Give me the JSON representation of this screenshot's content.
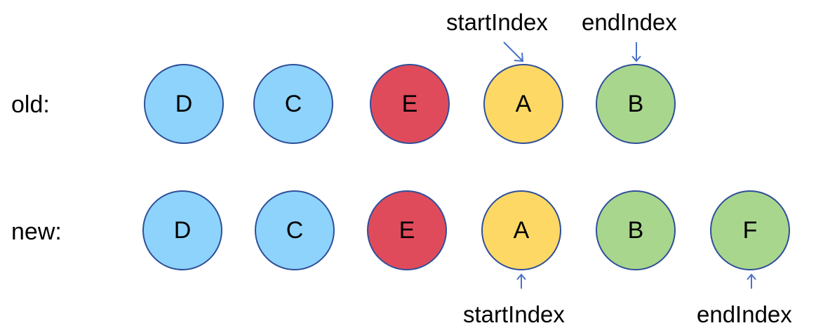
{
  "colors": {
    "blue": "#8dd3fb",
    "red": "#e04b5b",
    "yellow": "#fdd865",
    "green": "#a9d68d",
    "outline": "#2f4f9a",
    "arrow": "#4a72c8"
  },
  "old_row": {
    "label": "old:",
    "nodes": [
      {
        "letter": "D",
        "color": "blue"
      },
      {
        "letter": "C",
        "color": "blue"
      },
      {
        "letter": "E",
        "color": "red"
      },
      {
        "letter": "A",
        "color": "yellow"
      },
      {
        "letter": "B",
        "color": "green"
      }
    ],
    "start_label": "startIndex",
    "end_label": "endIndex"
  },
  "new_row": {
    "label": "new:",
    "nodes": [
      {
        "letter": "D",
        "color": "blue"
      },
      {
        "letter": "C",
        "color": "blue"
      },
      {
        "letter": "E",
        "color": "red"
      },
      {
        "letter": "A",
        "color": "yellow"
      },
      {
        "letter": "B",
        "color": "green"
      },
      {
        "letter": "F",
        "color": "green"
      }
    ],
    "start_label": "startIndex",
    "end_label": "endIndex"
  }
}
